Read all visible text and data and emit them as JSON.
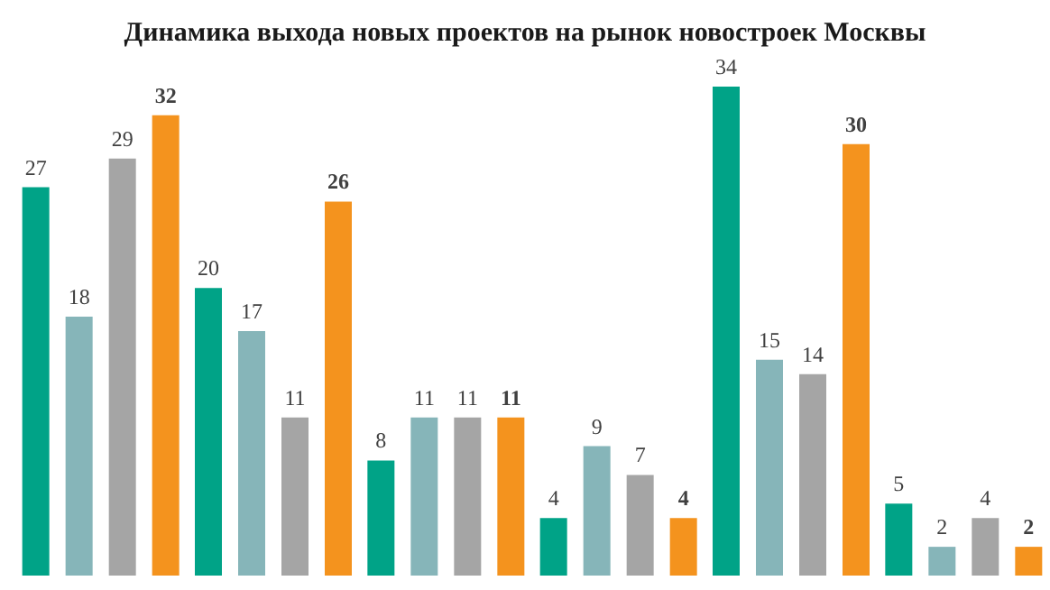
{
  "chart_data": {
    "type": "bar",
    "title": "Динамика выхода новых проектов на рынок новостроек Москвы",
    "categories": [
      null,
      null,
      null,
      null,
      null,
      null
    ],
    "series": [
      {
        "color": "#00a387",
        "values": [
          27,
          20,
          8,
          4,
          34,
          5
        ]
      },
      {
        "color": "#86b5b9",
        "values": [
          18,
          17,
          11,
          9,
          15,
          2
        ]
      },
      {
        "color": "#a5a5a5",
        "values": [
          29,
          11,
          11,
          7,
          14,
          4
        ]
      },
      {
        "color": "#f4931e",
        "values": [
          32,
          26,
          11,
          4,
          30,
          2
        ]
      }
    ],
    "data_labels": true
  }
}
